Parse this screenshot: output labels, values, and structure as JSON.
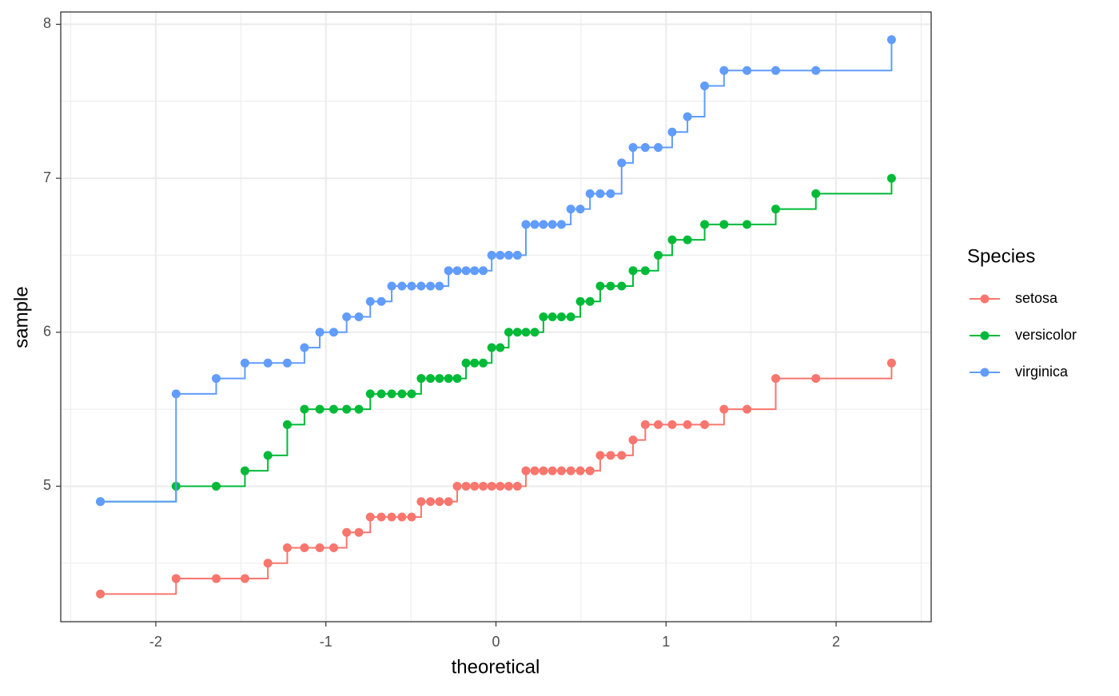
{
  "chart_data": {
    "type": "qq",
    "line_style": "step",
    "x_label": "theoretical",
    "y_label": "sample",
    "legend_title": "Species",
    "legend_position": "right",
    "x": [
      -2.326,
      -1.881,
      -1.645,
      -1.476,
      -1.341,
      -1.227,
      -1.126,
      -1.036,
      -0.954,
      -0.878,
      -0.806,
      -0.739,
      -0.674,
      -0.613,
      -0.553,
      -0.496,
      -0.44,
      -0.385,
      -0.332,
      -0.279,
      -0.228,
      -0.176,
      -0.126,
      -0.075,
      -0.025,
      0.025,
      0.075,
      0.126,
      0.176,
      0.228,
      0.279,
      0.332,
      0.385,
      0.44,
      0.496,
      0.553,
      0.613,
      0.674,
      0.739,
      0.806,
      0.878,
      0.954,
      1.036,
      1.126,
      1.227,
      1.341,
      1.476,
      1.645,
      1.881,
      2.326
    ],
    "series": [
      {
        "name": "setosa",
        "color": "#f8766d",
        "values": [
          4.3,
          4.4,
          4.4,
          4.4,
          4.5,
          4.6,
          4.6,
          4.6,
          4.6,
          4.7,
          4.7,
          4.8,
          4.8,
          4.8,
          4.8,
          4.8,
          4.9,
          4.9,
          4.9,
          4.9,
          5.0,
          5.0,
          5.0,
          5.0,
          5.0,
          5.0,
          5.0,
          5.0,
          5.1,
          5.1,
          5.1,
          5.1,
          5.1,
          5.1,
          5.1,
          5.1,
          5.2,
          5.2,
          5.2,
          5.3,
          5.4,
          5.4,
          5.4,
          5.4,
          5.4,
          5.5,
          5.5,
          5.7,
          5.7,
          5.8
        ]
      },
      {
        "name": "versicolor",
        "color": "#00ba38",
        "values": [
          4.9,
          5.0,
          5.0,
          5.1,
          5.2,
          5.4,
          5.5,
          5.5,
          5.5,
          5.5,
          5.5,
          5.6,
          5.6,
          5.6,
          5.6,
          5.6,
          5.7,
          5.7,
          5.7,
          5.7,
          5.7,
          5.8,
          5.8,
          5.8,
          5.9,
          5.9,
          6.0,
          6.0,
          6.0,
          6.0,
          6.1,
          6.1,
          6.1,
          6.1,
          6.2,
          6.2,
          6.3,
          6.3,
          6.3,
          6.4,
          6.4,
          6.5,
          6.6,
          6.6,
          6.7,
          6.7,
          6.7,
          6.8,
          6.9,
          7.0
        ]
      },
      {
        "name": "virginica",
        "color": "#619cff",
        "values": [
          4.9,
          5.6,
          5.7,
          5.8,
          5.8,
          5.8,
          5.9,
          6.0,
          6.0,
          6.1,
          6.1,
          6.2,
          6.2,
          6.3,
          6.3,
          6.3,
          6.3,
          6.3,
          6.3,
          6.4,
          6.4,
          6.4,
          6.4,
          6.4,
          6.5,
          6.5,
          6.5,
          6.5,
          6.7,
          6.7,
          6.7,
          6.7,
          6.7,
          6.8,
          6.8,
          6.9,
          6.9,
          6.9,
          7.1,
          7.2,
          7.2,
          7.2,
          7.3,
          7.4,
          7.6,
          7.7,
          7.7,
          7.7,
          7.7,
          7.9
        ]
      }
    ],
    "xlim": [
      -2.559,
      2.559
    ],
    "ylim": [
      4.12,
      8.08
    ],
    "xticks": [
      -2,
      -1,
      0,
      1,
      2
    ],
    "yticks": [
      5,
      6,
      7,
      8
    ],
    "x_minor_grid": [
      -2.5,
      -1.5,
      -0.5,
      0.5,
      1.5,
      2.5
    ],
    "y_minor_grid": [
      4.5,
      5.5,
      6.5,
      7.5
    ],
    "grid": true
  }
}
